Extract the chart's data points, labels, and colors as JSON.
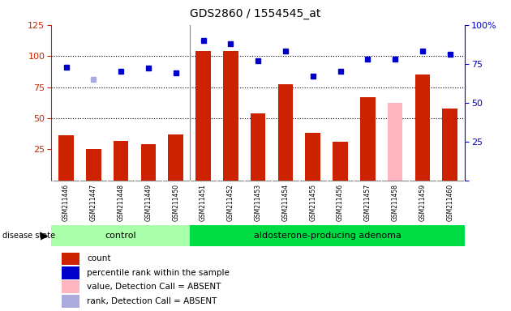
{
  "title": "GDS2860 / 1554545_at",
  "samples": [
    "GSM211446",
    "GSM211447",
    "GSM211448",
    "GSM211449",
    "GSM211450",
    "GSM211451",
    "GSM211452",
    "GSM211453",
    "GSM211454",
    "GSM211455",
    "GSM211456",
    "GSM211457",
    "GSM211458",
    "GSM211459",
    "GSM211460"
  ],
  "count": [
    36,
    25,
    32,
    29,
    37,
    104,
    104,
    54,
    77,
    38,
    31,
    67,
    62,
    85,
    58
  ],
  "count_absent": [
    false,
    false,
    false,
    false,
    false,
    false,
    false,
    false,
    false,
    false,
    false,
    false,
    true,
    false,
    false
  ],
  "percentile": [
    73,
    65,
    70,
    72,
    69,
    90,
    88,
    77,
    83,
    67,
    70,
    78,
    78,
    83,
    81
  ],
  "percentile_absent": [
    false,
    true,
    false,
    false,
    false,
    false,
    false,
    false,
    false,
    false,
    false,
    false,
    false,
    false,
    false
  ],
  "n_control": 5,
  "ylim_left": [
    0,
    125
  ],
  "ylim_right": [
    0,
    100
  ],
  "yticks_left": [
    25,
    50,
    75,
    100,
    125
  ],
  "yticks_right": [
    0,
    25,
    50,
    75,
    100
  ],
  "bar_color": "#CC2200",
  "bar_absent_color": "#FFB6C1",
  "dot_color": "#0000CC",
  "dot_absent_color": "#AAAADD",
  "control_bg": "#AAFFAA",
  "adenoma_bg": "#00DD44",
  "left_axis_color": "#CC2200",
  "right_axis_color": "#0000CC",
  "grid_color": "#000000",
  "plot_bg": "#FFFFFF",
  "label_row_bg": "#CCCCCC",
  "label_row_divider": "#FFFFFF"
}
